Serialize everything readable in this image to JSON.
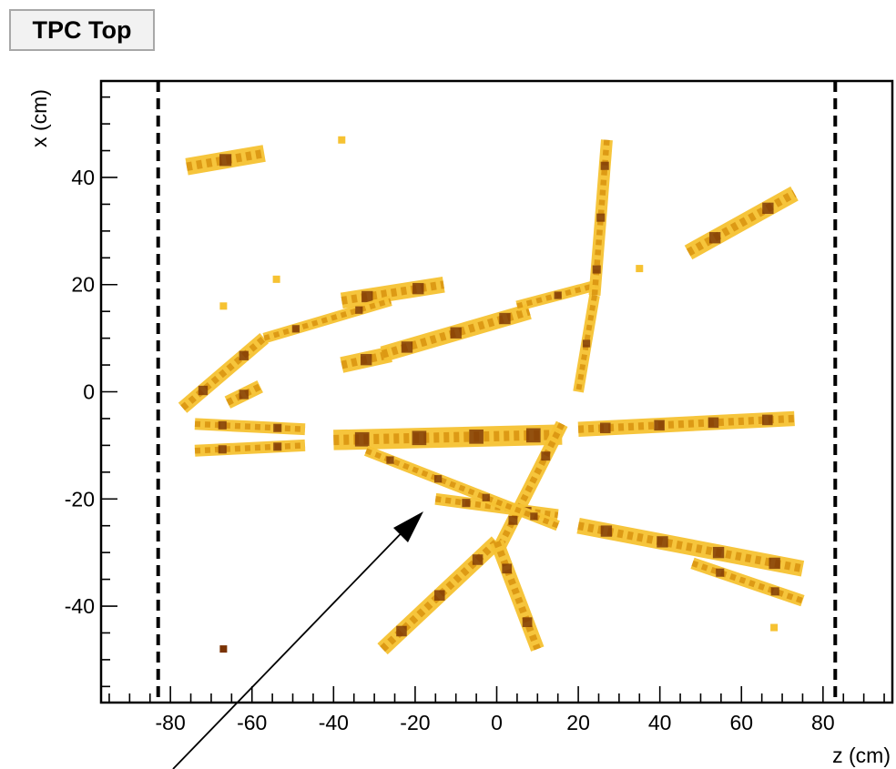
{
  "chart_data": {
    "type": "scatter",
    "title": "TPC Top",
    "xlabel": "z (cm)",
    "ylabel": "x (cm)",
    "xlim": [
      -97,
      97
    ],
    "ylim": [
      -58,
      58
    ],
    "x_ticks": [
      -80,
      -60,
      -40,
      -20,
      0,
      20,
      40,
      60,
      80
    ],
    "y_ticks": [
      40,
      20,
      0,
      -20,
      -40
    ],
    "boundaries_z": [
      -83,
      83
    ],
    "colors": {
      "light": "#f6c232",
      "mid": "#d9930f",
      "dark": "#7a3304",
      "background": "#ffffff"
    },
    "tracks": [
      {
        "from": [
          -76,
          42
        ],
        "to": [
          -57,
          44.5
        ],
        "width": 3.2
      },
      {
        "from": [
          -77,
          -3
        ],
        "to": [
          -57,
          10
        ],
        "width": 2.5
      },
      {
        "from": [
          -66,
          -2
        ],
        "to": [
          -58,
          1
        ],
        "width": 2.5
      },
      {
        "from": [
          -74,
          -6
        ],
        "to": [
          -47,
          -7
        ],
        "width": 2.2
      },
      {
        "from": [
          -74,
          -11
        ],
        "to": [
          -47,
          -10
        ],
        "width": 2.2
      },
      {
        "from": [
          -38,
          17
        ],
        "to": [
          -13,
          20
        ],
        "width": 3.0
      },
      {
        "from": [
          -38,
          5
        ],
        "to": [
          -26,
          7
        ],
        "width": 3.0
      },
      {
        "from": [
          -28,
          7
        ],
        "to": [
          8,
          15
        ],
        "width": 3.0
      },
      {
        "from": [
          -57,
          10
        ],
        "to": [
          -26,
          17
        ],
        "width": 2.0
      },
      {
        "from": [
          5,
          16
        ],
        "to": [
          25,
          20
        ],
        "width": 2.0
      },
      {
        "from": [
          47,
          26
        ],
        "to": [
          73,
          37
        ],
        "width": 3.0
      },
      {
        "from": [
          -40,
          -9
        ],
        "to": [
          16,
          -8
        ],
        "width": 3.8
      },
      {
        "from": [
          20,
          -7
        ],
        "to": [
          73,
          -5
        ],
        "width": 2.8
      },
      {
        "from": [
          27,
          47
        ],
        "to": [
          24,
          18
        ],
        "width": 2.2
      },
      {
        "from": [
          24,
          18
        ],
        "to": [
          20,
          0
        ],
        "width": 2.0
      },
      {
        "from": [
          16,
          -6
        ],
        "to": [
          0,
          -30
        ],
        "width": 2.4
      },
      {
        "from": [
          -15,
          -20
        ],
        "to": [
          15,
          -23
        ],
        "width": 2.2
      },
      {
        "from": [
          -32,
          -11
        ],
        "to": [
          15,
          -25
        ],
        "width": 2.0
      },
      {
        "from": [
          -28,
          -48
        ],
        "to": [
          0,
          -28
        ],
        "width": 2.8
      },
      {
        "from": [
          0,
          -28
        ],
        "to": [
          10,
          -48
        ],
        "width": 2.6
      },
      {
        "from": [
          20,
          -25
        ],
        "to": [
          75,
          -33
        ],
        "width": 3.0
      },
      {
        "from": [
          48,
          -32
        ],
        "to": [
          75,
          -39
        ],
        "width": 2.2
      }
    ],
    "hits": [
      {
        "x": -67,
        "y": -48
      },
      {
        "x": -38,
        "y": 47
      },
      {
        "x": -67,
        "y": 16
      },
      {
        "x": 35,
        "y": 23
      },
      {
        "x": 68,
        "y": -44
      },
      {
        "x": -54,
        "y": 21
      }
    ]
  }
}
